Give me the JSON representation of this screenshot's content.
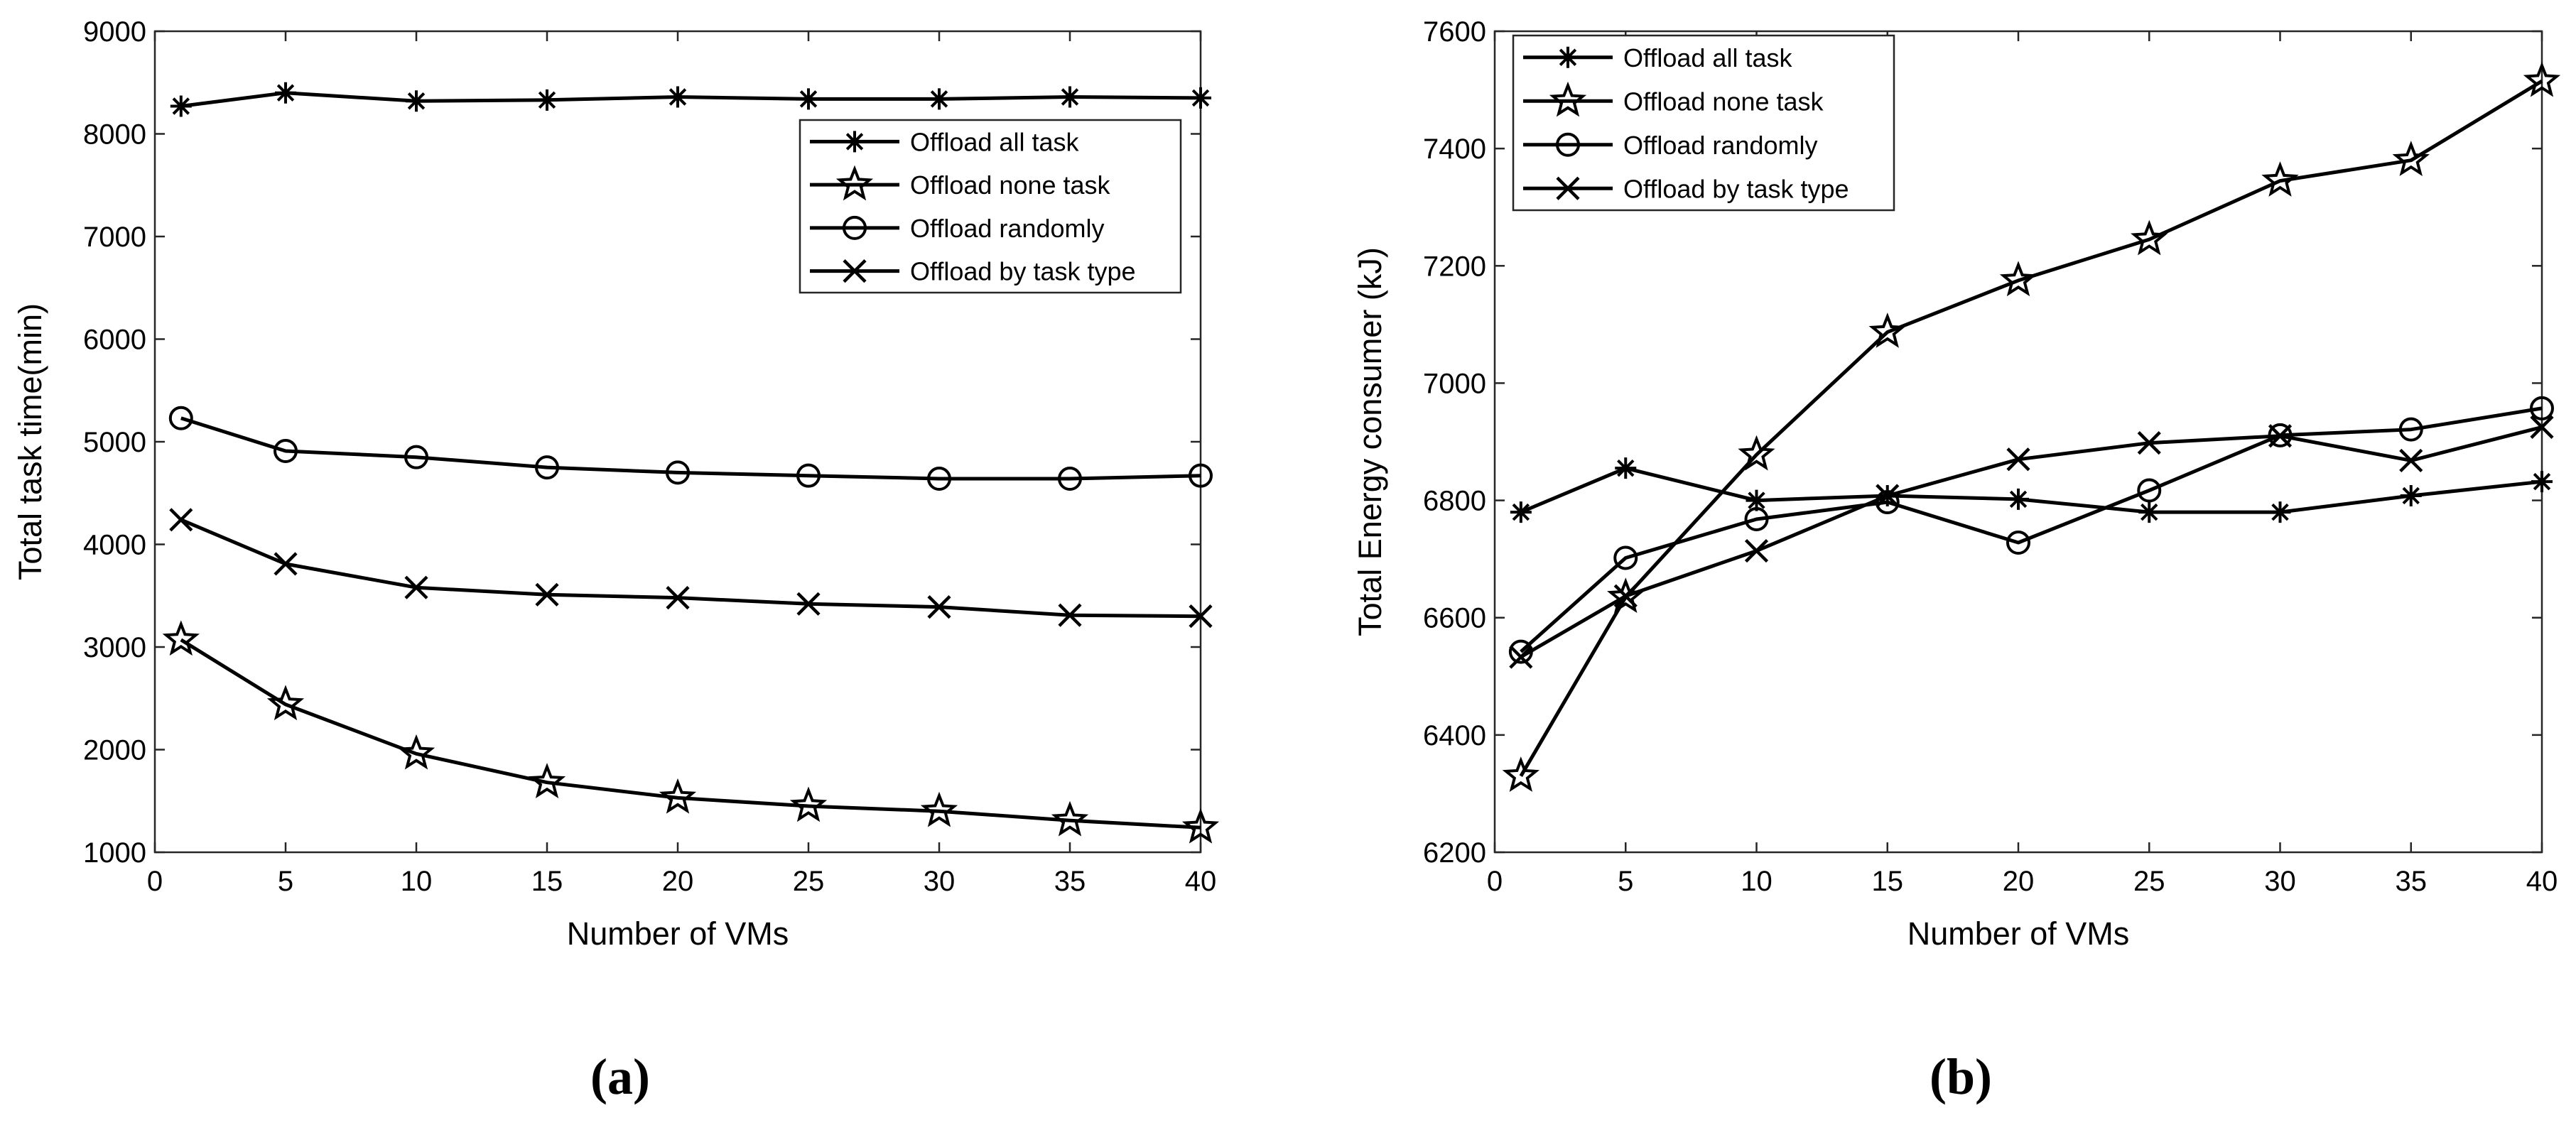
{
  "chart_data": [
    {
      "panel_label": "(a)",
      "type": "line",
      "xlabel": "Number of VMs",
      "ylabel": "Total task time(min)",
      "xlim": [
        0,
        40
      ],
      "ylim": [
        1000,
        9000
      ],
      "xticks": [
        0,
        5,
        10,
        15,
        20,
        25,
        30,
        35,
        40
      ],
      "yticks": [
        1000,
        2000,
        3000,
        4000,
        5000,
        6000,
        7000,
        8000,
        9000
      ],
      "grid": false,
      "legend_position": "top-right",
      "x": [
        1,
        5,
        10,
        15,
        20,
        25,
        30,
        35,
        40
      ],
      "series": [
        {
          "name": "Offload all task",
          "marker": "asterisk",
          "values": [
            8270,
            8400,
            8320,
            8330,
            8360,
            8340,
            8340,
            8360,
            8350
          ]
        },
        {
          "name": "Offload none task",
          "marker": "star",
          "values": [
            3070,
            2440,
            1960,
            1680,
            1530,
            1450,
            1400,
            1310,
            1240
          ]
        },
        {
          "name": "Offload randomly",
          "marker": "circle",
          "values": [
            5230,
            4910,
            4850,
            4750,
            4700,
            4670,
            4640,
            4640,
            4670
          ]
        },
        {
          "name": "Offload by task type",
          "marker": "x",
          "values": [
            4240,
            3810,
            3580,
            3510,
            3480,
            3420,
            3390,
            3310,
            3300
          ]
        }
      ]
    },
    {
      "panel_label": "(b)",
      "type": "line",
      "xlabel": "Number of VMs",
      "ylabel": "Total Energy consumer (kJ)",
      "xlim": [
        0,
        40
      ],
      "ylim": [
        6200,
        7600
      ],
      "xticks": [
        0,
        5,
        10,
        15,
        20,
        25,
        30,
        35,
        40
      ],
      "yticks": [
        6200,
        6400,
        6600,
        6800,
        7000,
        7200,
        7400,
        7600
      ],
      "grid": false,
      "legend_position": "top-left",
      "x": [
        1,
        5,
        10,
        15,
        20,
        25,
        30,
        35,
        40
      ],
      "series": [
        {
          "name": "Offload all task",
          "marker": "asterisk",
          "values": [
            6780,
            6855,
            6800,
            6808,
            6802,
            6780,
            6780,
            6808,
            6832
          ]
        },
        {
          "name": "Offload none task",
          "marker": "star",
          "values": [
            6330,
            6635,
            6878,
            7087,
            7175,
            7245,
            7345,
            7380,
            7515
          ]
        },
        {
          "name": "Offload randomly",
          "marker": "circle",
          "values": [
            6542,
            6702,
            6768,
            6797,
            6728,
            6817,
            6911,
            6921,
            6957
          ]
        },
        {
          "name": "Offload by task type",
          "marker": "x",
          "values": [
            6533,
            6637,
            6714,
            6808,
            6870,
            6898,
            6910,
            6868,
            6925
          ]
        }
      ]
    }
  ]
}
